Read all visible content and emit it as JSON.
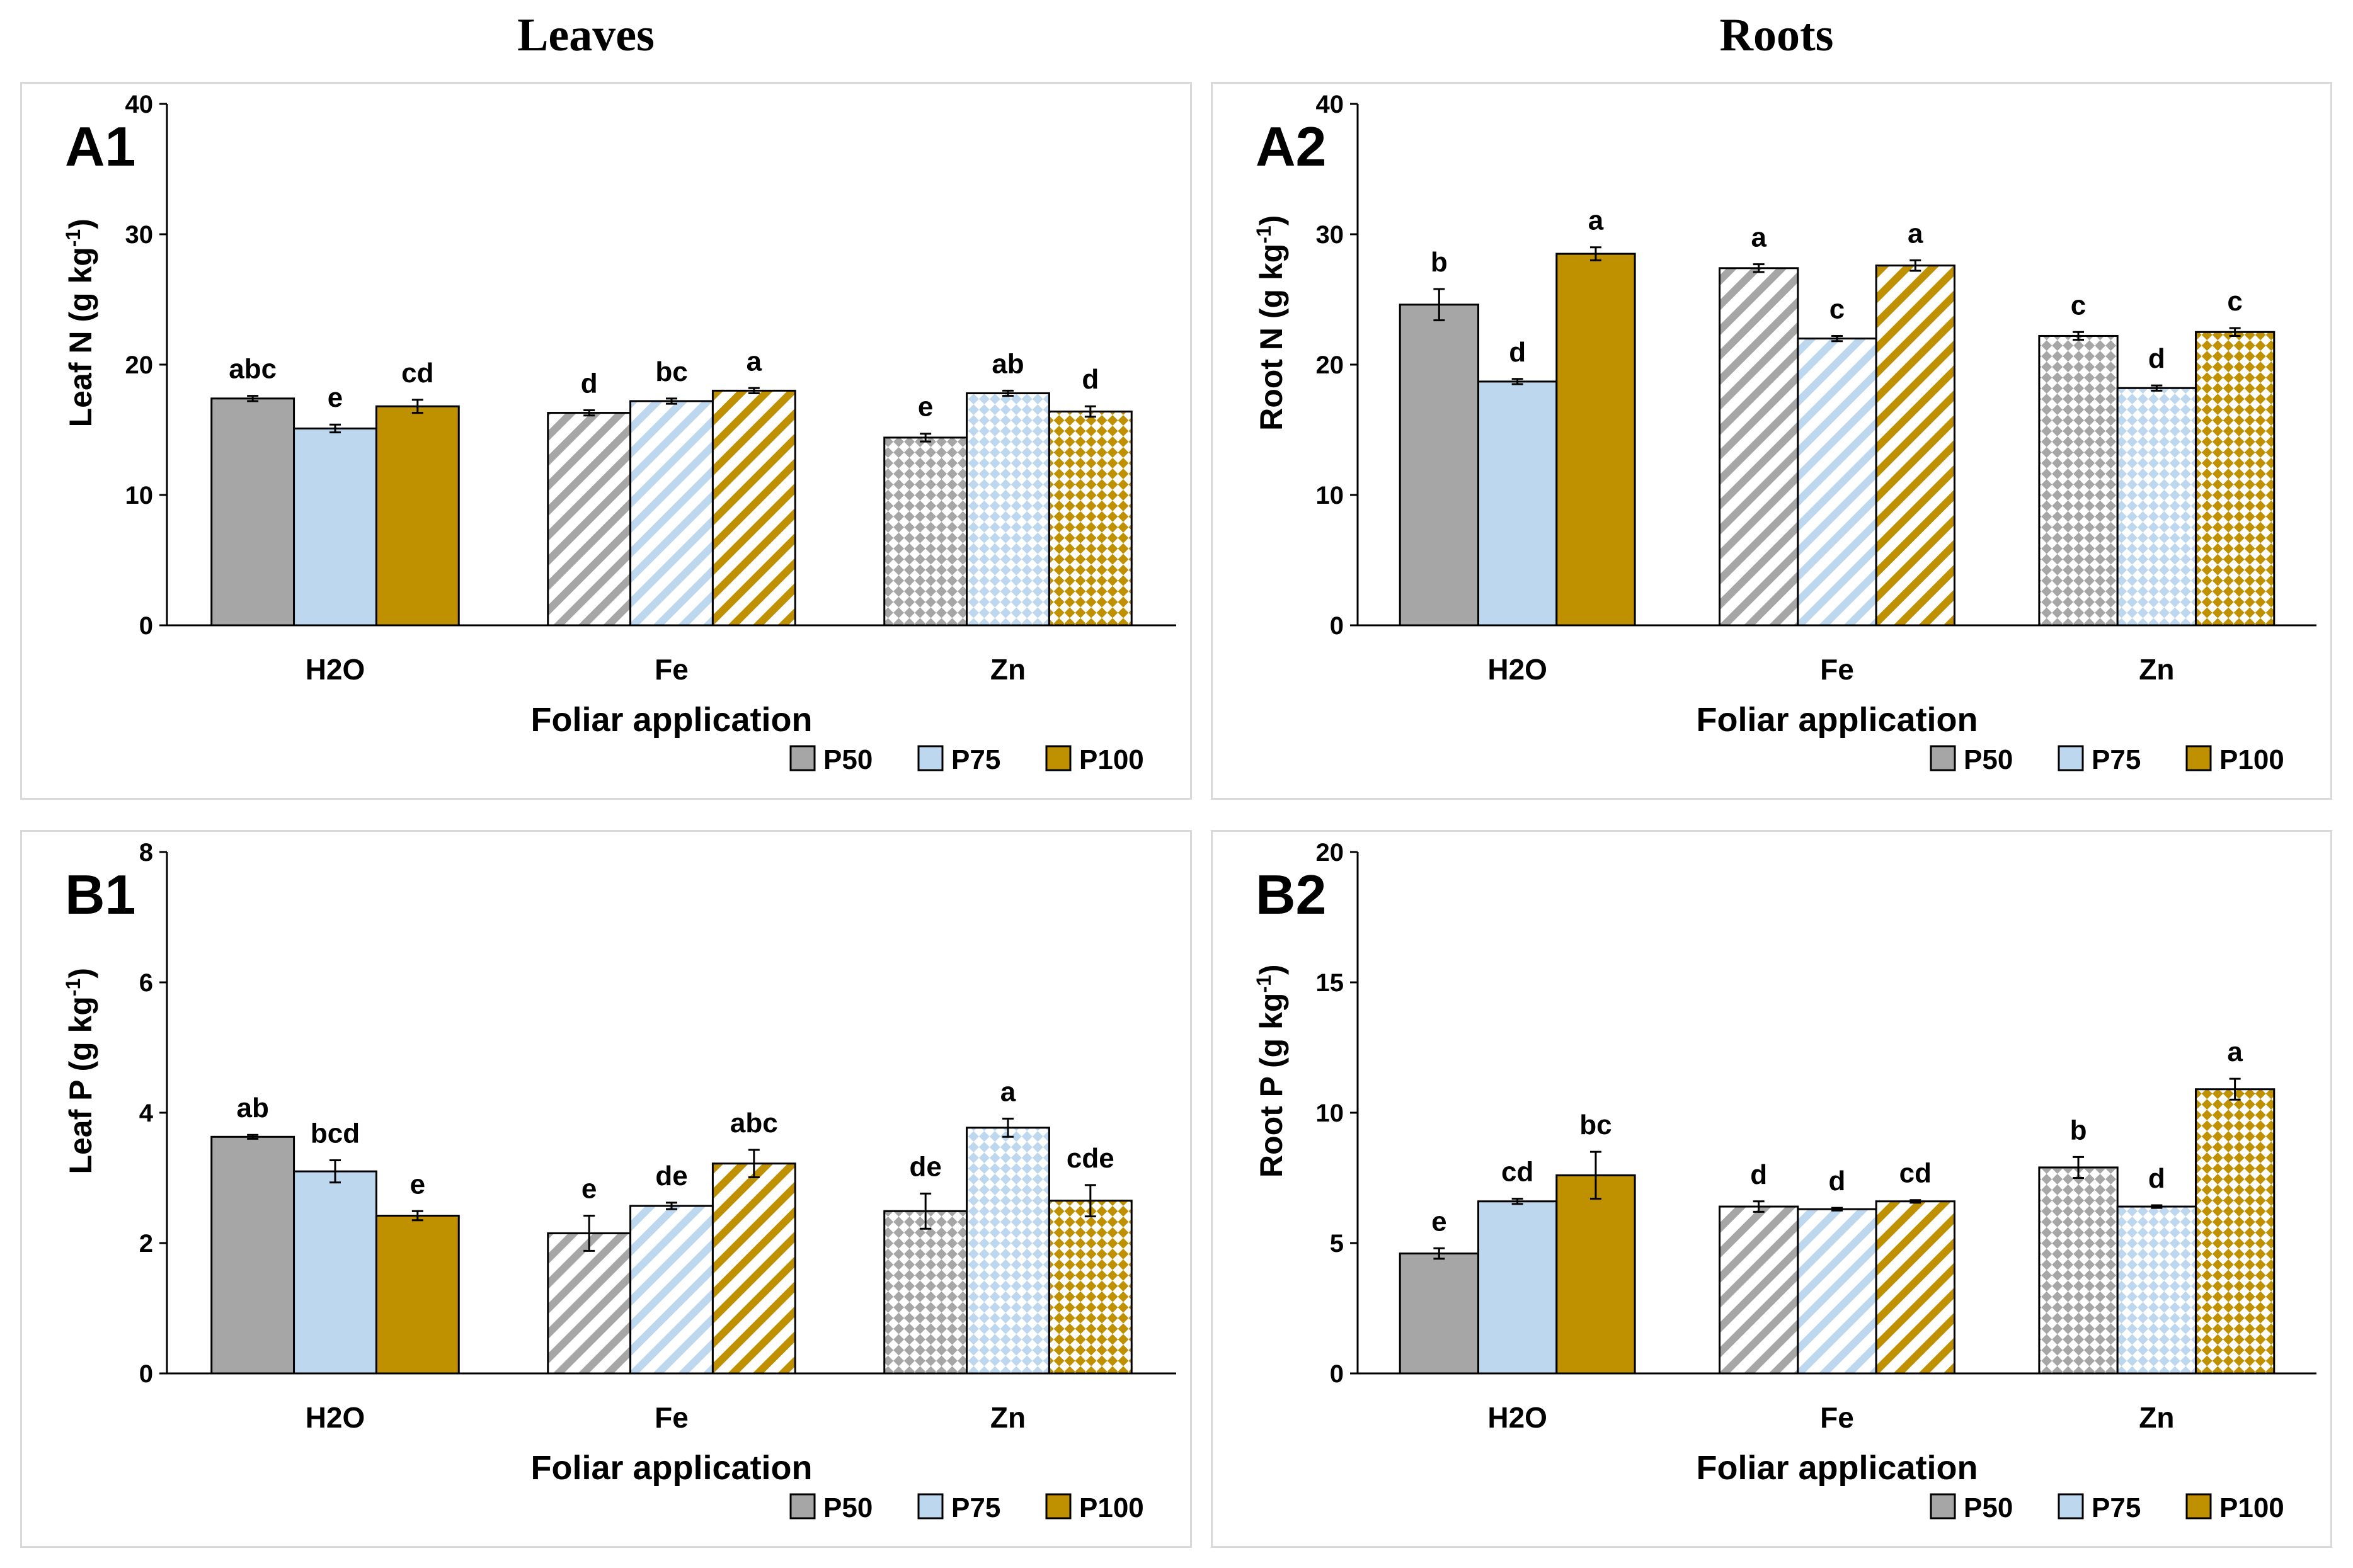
{
  "titles": {
    "left": "Leaves",
    "right": "Roots"
  },
  "legend": {
    "labels": [
      "P50",
      "P75",
      "P100"
    ]
  },
  "colors": {
    "P50": "#a6a6a6",
    "P75": "#bdd7ee",
    "P100": "#bf9000"
  },
  "chart_data": [
    {
      "type": "bar",
      "panel": "A1",
      "ylabel": "Leaf N (g kg-1)",
      "ylabel_main": "Leaf N (g kg",
      "ylabel_sup": "-1",
      "ylabel_close": ")",
      "xlabel": "Foliar application",
      "ylim": [
        0,
        40
      ],
      "yticks": [
        "0",
        "10",
        "20",
        "30",
        "40"
      ],
      "ytick_values": [
        0,
        10,
        20,
        30,
        40
      ],
      "categories": [
        "H2O",
        "Fe",
        "Zn"
      ],
      "series": [
        {
          "name": "P50",
          "values": [
            17.4,
            16.3,
            14.4
          ],
          "errors": [
            0.2,
            0.2,
            0.3
          ],
          "letters": [
            "abc",
            "d",
            "e"
          ]
        },
        {
          "name": "P75",
          "values": [
            15.1,
            17.2,
            17.8
          ],
          "errors": [
            0.3,
            0.2,
            0.2
          ],
          "letters": [
            "e",
            "bc",
            "ab"
          ]
        },
        {
          "name": "P100",
          "values": [
            16.8,
            18.0,
            16.4
          ],
          "errors": [
            0.5,
            0.2,
            0.4
          ],
          "letters": [
            "cd",
            "a",
            "d"
          ]
        }
      ]
    },
    {
      "type": "bar",
      "panel": "A2",
      "ylabel": "Root N (g kg-1)",
      "ylabel_main": "Root N (g kg",
      "ylabel_sup": "-1",
      "ylabel_close": ")",
      "xlabel": "Foliar application",
      "ylim": [
        0,
        40
      ],
      "yticks": [
        "0",
        "10",
        "20",
        "30",
        "40"
      ],
      "ytick_values": [
        0,
        10,
        20,
        30,
        40
      ],
      "categories": [
        "H2O",
        "Fe",
        "Zn"
      ],
      "series": [
        {
          "name": "P50",
          "values": [
            24.6,
            27.4,
            22.2
          ],
          "errors": [
            1.2,
            0.3,
            0.3
          ],
          "letters": [
            "b",
            "a",
            "c"
          ]
        },
        {
          "name": "P75",
          "values": [
            18.7,
            22.0,
            18.2
          ],
          "errors": [
            0.2,
            0.2,
            0.2
          ],
          "letters": [
            "d",
            "c",
            "d"
          ]
        },
        {
          "name": "P100",
          "values": [
            28.5,
            27.6,
            22.5
          ],
          "errors": [
            0.5,
            0.4,
            0.3
          ],
          "letters": [
            "a",
            "a",
            "c"
          ]
        }
      ]
    },
    {
      "type": "bar",
      "panel": "B1",
      "ylabel": "Leaf P (g kg-1)",
      "ylabel_main": "Leaf P (g kg",
      "ylabel_sup": "-1",
      "ylabel_close": ")",
      "xlabel": "Foliar application",
      "ylim": [
        0,
        8
      ],
      "yticks": [
        "0",
        "2",
        "4",
        "6",
        "8"
      ],
      "ytick_values": [
        0,
        2,
        4,
        6,
        8
      ],
      "categories": [
        "H2O",
        "Fe",
        "Zn"
      ],
      "series": [
        {
          "name": "P50",
          "values": [
            3.63,
            2.15,
            2.49
          ],
          "errors": [
            0.03,
            0.27,
            0.27
          ],
          "letters": [
            "ab",
            "e",
            "de"
          ]
        },
        {
          "name": "P75",
          "values": [
            3.1,
            2.57,
            3.77
          ],
          "errors": [
            0.17,
            0.05,
            0.14
          ],
          "letters": [
            "bcd",
            "de",
            "a"
          ]
        },
        {
          "name": "P100",
          "values": [
            2.42,
            3.22,
            2.65
          ],
          "errors": [
            0.07,
            0.21,
            0.24
          ],
          "letters": [
            "e",
            "abc",
            "cde"
          ]
        }
      ]
    },
    {
      "type": "bar",
      "panel": "B2",
      "ylabel": "Root P (g kg-1)",
      "ylabel_main": "Root P (g kg",
      "ylabel_sup": "-1",
      "ylabel_close": ")",
      "xlabel": "Foliar application",
      "ylim": [
        0,
        20
      ],
      "yticks": [
        "0",
        "5",
        "10",
        "15",
        "20"
      ],
      "ytick_values": [
        0,
        5,
        10,
        15,
        20
      ],
      "categories": [
        "H2O",
        "Fe",
        "Zn"
      ],
      "series": [
        {
          "name": "P50",
          "values": [
            4.6,
            6.4,
            7.9
          ],
          "errors": [
            0.2,
            0.2,
            0.4
          ],
          "letters": [
            "e",
            "d",
            "b"
          ]
        },
        {
          "name": "P75",
          "values": [
            6.6,
            6.3,
            6.4
          ],
          "errors": [
            0.1,
            0.05,
            0.05
          ],
          "letters": [
            "cd",
            "d",
            "d"
          ]
        },
        {
          "name": "P100",
          "values": [
            7.6,
            6.6,
            10.9
          ],
          "errors": [
            0.9,
            0.05,
            0.4
          ],
          "letters": [
            "bc",
            "cd",
            "a"
          ]
        }
      ]
    }
  ]
}
